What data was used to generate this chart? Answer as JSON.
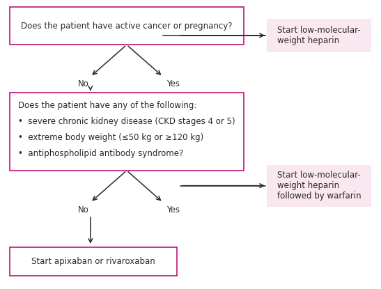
{
  "bg_color": "#ffffff",
  "box_border_color": "#b5006e",
  "outcome_bg_color": "#f9e8ef",
  "text_color": "#2a2a2a",
  "arrow_color": "#2a2a2a",
  "box1_text": "Does the patient have active cancer or pregnancy?",
  "box2_line1": "Does the patient have any of the following:",
  "box2_bullet1": "•  severe chronic kidney disease (CKD stages 4 or 5)",
  "box2_bullet2": "•  extreme body weight (≤50 kg or ≥120 kg)",
  "box2_bullet3": "•  antiphospholipid antibody syndrome?",
  "box3_text": "Start apixaban or rivaroxaban",
  "outcome1_text": "Start low-molecular-\nweight heparin",
  "outcome2_text": "Start low-molecular-\nweight heparin\nfollowed by warfarin",
  "no_label": "No",
  "yes_label": "Yes",
  "font_size": 8.5,
  "label_font_size": 8.5
}
